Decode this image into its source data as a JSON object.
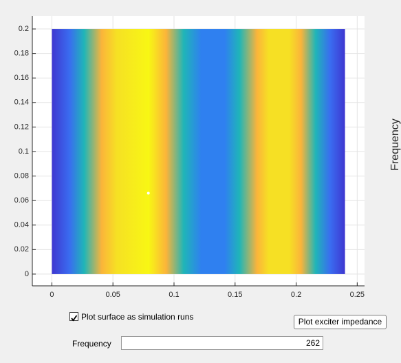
{
  "plot": {
    "xlim": [
      -0.016,
      0.256
    ],
    "ylim": [
      -0.0096,
      0.2107
    ],
    "xticks": [
      0,
      0.05,
      0.1,
      0.15,
      0.2,
      0.25
    ],
    "yticks": [
      0,
      0.02,
      0.04,
      0.06,
      0.08,
      0.1,
      0.12,
      0.14,
      0.16,
      0.18,
      0.2
    ],
    "grid": true,
    "surface": {
      "x": [
        0,
        0.24
      ],
      "y": [
        0,
        0.2
      ]
    },
    "marker": {
      "x": 0.079,
      "y": 0.066
    }
  },
  "colorbar_label": "Frequency",
  "controls": {
    "checkbox": {
      "label": "Plot surface as simulation runs",
      "checked": true
    },
    "button": "Plot exciter impedance",
    "frequency_label": "Frequency",
    "frequency_value": "262"
  }
}
